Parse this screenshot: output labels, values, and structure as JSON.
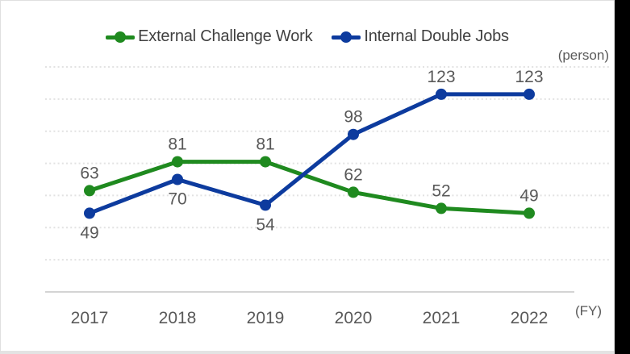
{
  "chart_data": {
    "type": "line",
    "title": "",
    "unit_label": "(person)",
    "x_unit_label": "(FY)",
    "xlabel": "FY",
    "ylabel": "person",
    "categories": [
      "2017",
      "2018",
      "2019",
      "2020",
      "2021",
      "2022"
    ],
    "series": [
      {
        "name": "External Challenge Work",
        "color": "#1f8a1f",
        "values": [
          63,
          81,
          81,
          62,
          52,
          49
        ],
        "label_positions": [
          "above",
          "above",
          "above",
          "above",
          "above",
          "above"
        ]
      },
      {
        "name": "Internal Double Jobs",
        "color": "#0d3b9e",
        "values": [
          49,
          70,
          54,
          98,
          123,
          123
        ],
        "label_positions": [
          "below",
          "below",
          "below",
          "above",
          "above",
          "above"
        ]
      }
    ],
    "ylim": [
      0,
      140
    ],
    "grid_step": 20,
    "grid": "horizontal-dotted",
    "y_axis_labels_shown": false,
    "legend_position": "top-center",
    "colors": {
      "grid": "#e2e2e2",
      "axis": "#d4d4d4",
      "data_label_text": "#595959",
      "tick_text": "#595959",
      "legend_text": "#404040",
      "background": "#ffffff",
      "outer_strip": "#000000"
    }
  }
}
